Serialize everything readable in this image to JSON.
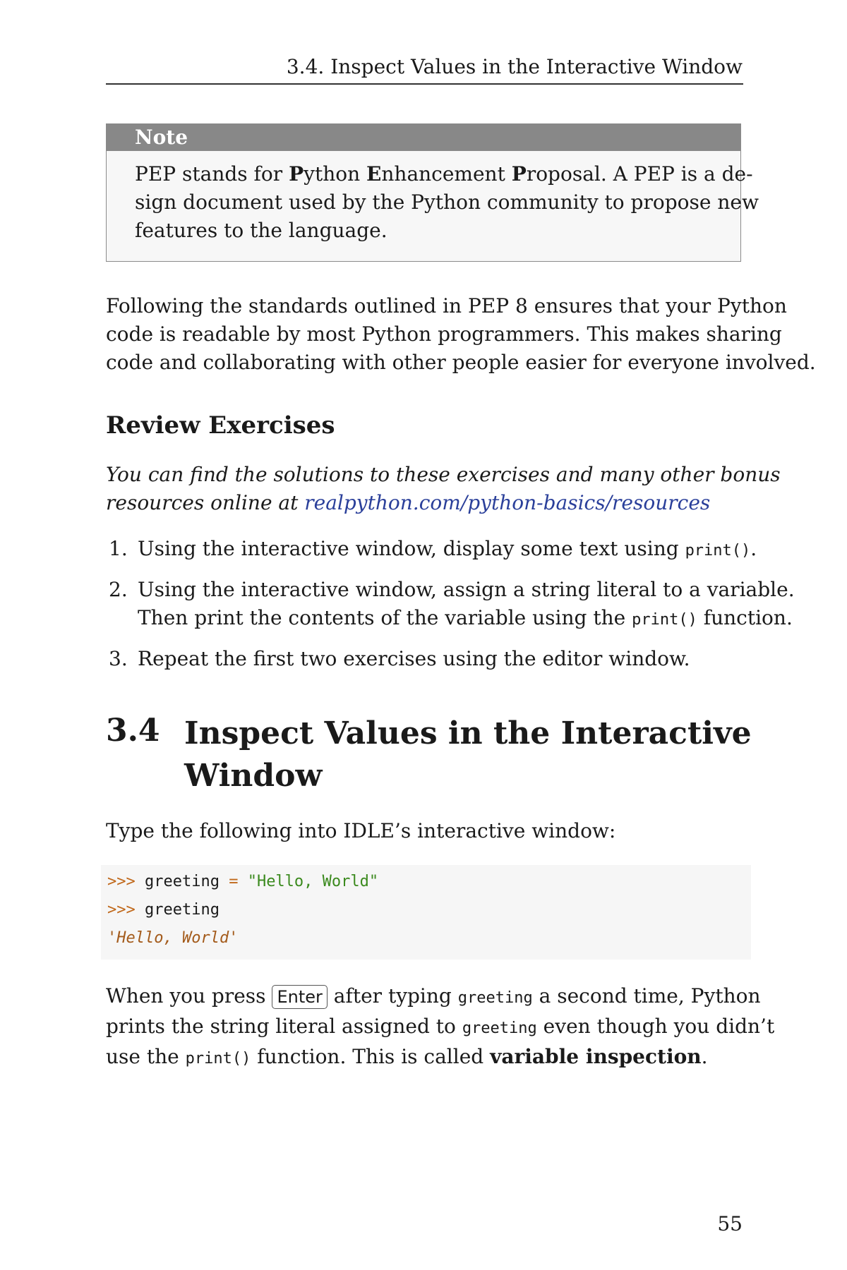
{
  "header": {
    "running_title": "3.4.  Inspect Values in the Interactive Window"
  },
  "note": {
    "title": "Note",
    "line1_a": "PEP stands for ",
    "line1_b": "P",
    "line1_c": "ython ",
    "line1_d": "E",
    "line1_e": "nhancement ",
    "line1_f": "P",
    "line1_g": "roposal.  A PEP is a de-",
    "line2": "sign document used by the Python community to propose new",
    "line3": "features to the language."
  },
  "pep8_paragraph": {
    "line1": "Following the standards outlined in PEP 8 ensures that your Python",
    "line2": "code is readable by most Python programmers.  This makes sharing",
    "line3": "code and collaborating with other people easier for everyone involved."
  },
  "review": {
    "heading": "Review Exercises",
    "intro_line1": "You can find the solutions to these exercises and many other bonus",
    "intro_line2": "resources online at ",
    "link": "realpython.com/python-basics/resources",
    "exercises": [
      {
        "num": "1.",
        "text_a": "Using the interactive window, display some text using ",
        "code": "print()",
        "text_b": "."
      },
      {
        "num": "2.",
        "line1": "Using the interactive window, assign a string literal to a variable.",
        "text_a": "Then print the contents of the variable using the ",
        "code": "print()",
        "text_b": " function."
      },
      {
        "num": "3.",
        "text": "Repeat the first two exercises using the editor window."
      }
    ]
  },
  "section": {
    "number": "3.4",
    "title_line1": "Inspect Values in the Interactive",
    "title_line2": "Window",
    "intro": "Type the following into IDLE’s interactive window:"
  },
  "code": {
    "prompt": ">>>",
    "line1_var": " greeting ",
    "line1_op": "=",
    "line1_str": " \"Hello, World\"",
    "line2_var": " greeting",
    "output": "'Hello, World'"
  },
  "closing_paragraph": {
    "l1_a": "When you press ",
    "key": "Enter",
    "l1_b": " after typing ",
    "l1_code": "greeting",
    "l1_c": " a second time, Python",
    "l2_a": "prints the string literal assigned to ",
    "l2_code": "greeting",
    "l2_b": " even though you didn’t",
    "l3_a": "use the ",
    "l3_code": "print()",
    "l3_b": " function. This is called ",
    "l3_bold": "variable inspection",
    "l3_c": "."
  },
  "footer": {
    "page_number": "55"
  }
}
